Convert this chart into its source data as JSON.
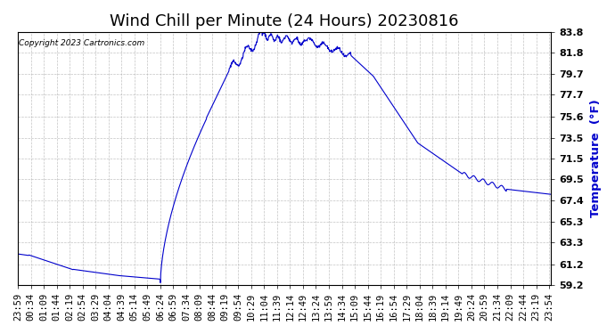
{
  "title": "Wind Chill per Minute (24 Hours) 20230816",
  "ylabel": "Temperature  (°F)",
  "copyright": "Copyright 2023 Cartronics.com",
  "line_color": "#0000CC",
  "ylabel_color": "#0000CC",
  "background_color": "#ffffff",
  "grid_color": "#aaaaaa",
  "ylim_min": 59.2,
  "ylim_max": 83.8,
  "yticks": [
    59.2,
    61.2,
    63.3,
    65.3,
    67.4,
    69.5,
    71.5,
    73.5,
    75.6,
    77.7,
    79.7,
    81.8,
    83.8
  ],
  "x_labels_step": 35,
  "title_fontsize": 13,
  "axis_fontsize": 8.5,
  "tick_fontsize": 7.5
}
